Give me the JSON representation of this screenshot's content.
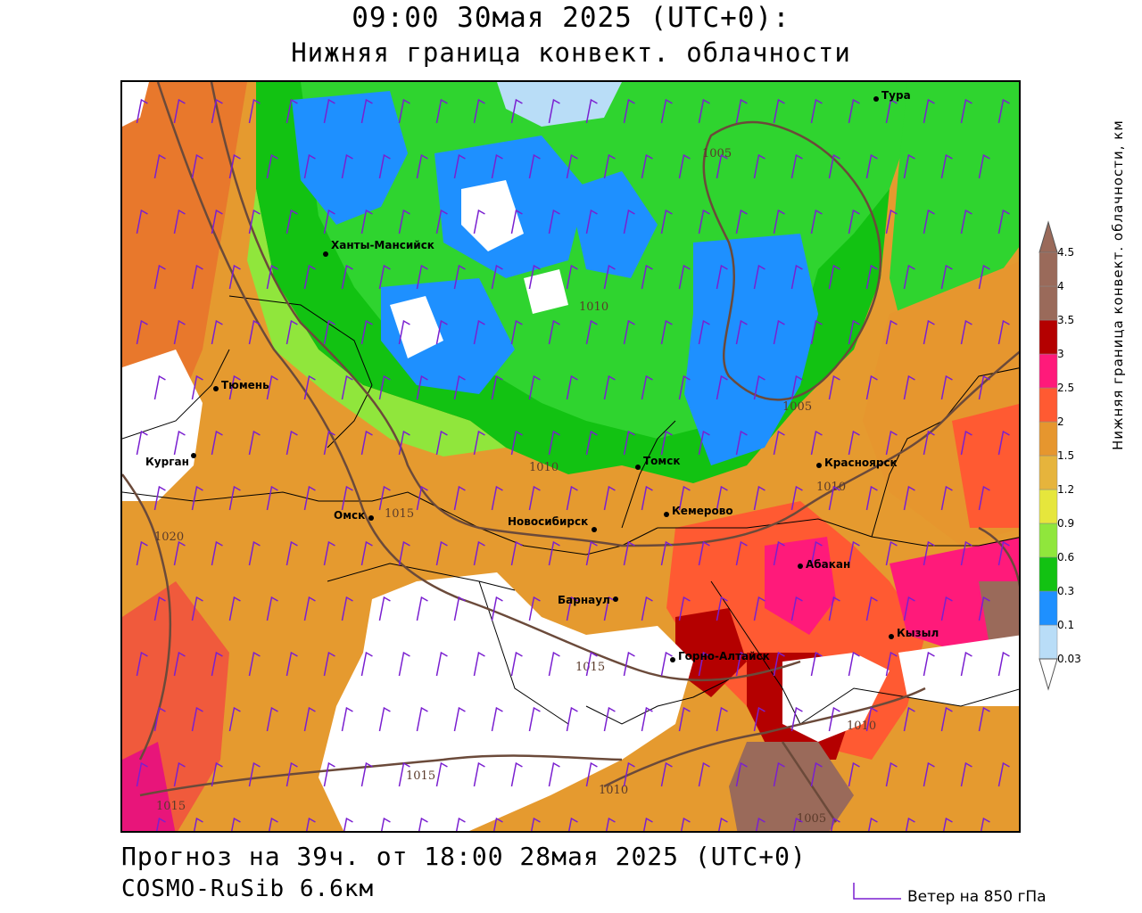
{
  "header": {
    "title_time": "09:00 30мая 2025 (UTC+0):",
    "title_field": "Нижняя граница конвект. облачности"
  },
  "footer": {
    "forecast": "Прогноз на 39ч. от 18:00 28мая 2025 (UTC+0)",
    "model": "COSMO-RuSib 6.6км",
    "wind_legend": "Ветер на 850 гПа"
  },
  "colorbar": {
    "title": "Нижняя граница конвект. облачности, км",
    "levels": [
      "0.03",
      "0.1",
      "0.3",
      "0.6",
      "0.9",
      "1.2",
      "1.5",
      "2",
      "2.5",
      "3",
      "3.5",
      "4",
      "4.5"
    ],
    "colors": [
      "#e9e9ff",
      "#b9ddf7",
      "#1e90ff",
      "#12c212",
      "#90e63c",
      "#e6e63c",
      "#e6b43c",
      "#e6962e",
      "#ff5a32",
      "#ff1a7a",
      "#b40000",
      "#9a6a5a",
      "#9a6a5a"
    ]
  },
  "cities": [
    {
      "name": "Тура"
    },
    {
      "name": "Ханты-Мансийск"
    },
    {
      "name": "Тюмень"
    },
    {
      "name": "Курган"
    },
    {
      "name": "Омск"
    },
    {
      "name": "Новосибирск"
    },
    {
      "name": "Томск"
    },
    {
      "name": "Кемерово"
    },
    {
      "name": "Красноярск"
    },
    {
      "name": "Абакан"
    },
    {
      "name": "Барнаул"
    },
    {
      "name": "Горно-Алтайск"
    },
    {
      "name": "Кызыл"
    }
  ],
  "isobars": [
    "1005",
    "1010",
    "1005",
    "1010",
    "1015",
    "1020",
    "1010",
    "1015",
    "1015",
    "1015",
    "1010",
    "1010",
    "1005"
  ]
}
